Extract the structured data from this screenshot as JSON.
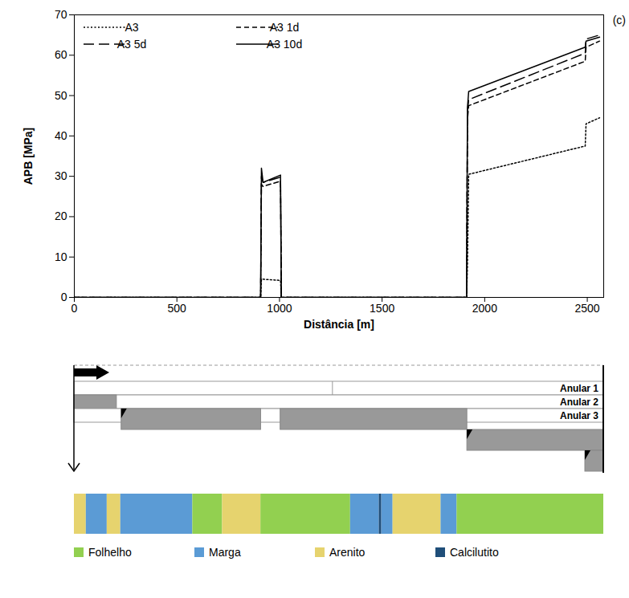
{
  "chart_data": {
    "type": "line",
    "annotation": "(c)",
    "xlabel": "Distância [m]",
    "ylabel": "APB [MPa]",
    "x": [
      0,
      908,
      912,
      920,
      1005,
      1009,
      1912,
      1916,
      1922,
      2490,
      2494,
      2560
    ],
    "xlim": [
      0,
      2580
    ],
    "xticks": [
      0,
      500,
      1000,
      1500,
      2000,
      2500
    ],
    "ylim": [
      0,
      70
    ],
    "yticks": [
      0,
      10,
      20,
      30,
      40,
      50,
      60,
      70
    ],
    "grid": false,
    "legend": "top-left",
    "series": [
      {
        "name": "A3",
        "color": "#000000",
        "line_style": "dotted",
        "values": [
          0,
          0,
          4.5,
          4.5,
          4.2,
          0,
          0,
          8,
          30.5,
          37.5,
          43,
          44.5
        ]
      },
      {
        "name": "A3 1d",
        "color": "#000000",
        "line_style": "dashed",
        "values": [
          0,
          0,
          28,
          27.5,
          28.8,
          0,
          0,
          44,
          47.5,
          58.5,
          62,
          63.5
        ]
      },
      {
        "name": "A3 5d",
        "color": "#000000",
        "line_style": "longdash",
        "values": [
          0,
          0,
          30,
          28.5,
          29.8,
          0,
          0,
          46,
          49,
          60.5,
          64,
          65
        ]
      },
      {
        "name": "A3 10d",
        "color": "#000000",
        "line_style": "solid",
        "values": [
          0,
          0,
          32,
          28.5,
          30.3,
          0,
          0,
          47,
          51,
          62,
          63.5,
          64.5
        ]
      }
    ]
  },
  "well_schematic": {
    "annuli": [
      {
        "label": "Anular 1",
        "divisions": [
          1260
        ],
        "cement": []
      },
      {
        "label": "Anular 2",
        "divisions": [],
        "cement": [
          [
            0,
            207
          ]
        ]
      },
      {
        "label": "Anular 3",
        "divisions": [],
        "cement": [
          [
            230,
            910
          ],
          [
            1005,
            1915
          ]
        ]
      }
    ],
    "casings": [
      {
        "cement": [
          [
            1915,
            2580
          ]
        ]
      },
      {
        "cement": [
          [
            2490,
            2580
          ]
        ]
      }
    ]
  },
  "lithology": {
    "legend": [
      {
        "name": "Folhelho",
        "color": "#92d050"
      },
      {
        "name": "Marga",
        "color": "#5b9bd5"
      },
      {
        "name": "Arenito",
        "color": "#e6d36e"
      },
      {
        "name": "Calcilutito",
        "color": "#1f4e79"
      }
    ],
    "layers": [
      {
        "rock": "Arenito",
        "from": 0,
        "to": 58
      },
      {
        "rock": "Marga",
        "from": 58,
        "to": 160
      },
      {
        "rock": "Arenito",
        "from": 160,
        "to": 226
      },
      {
        "rock": "Marga",
        "from": 226,
        "to": 577
      },
      {
        "rock": "Folhelho",
        "from": 577,
        "to": 722
      },
      {
        "rock": "Arenito",
        "from": 722,
        "to": 909
      },
      {
        "rock": "Folhelho",
        "from": 909,
        "to": 1346
      },
      {
        "rock": "Marga",
        "from": 1346,
        "to": 1486
      },
      {
        "rock": "Calcilutito",
        "from": 1486,
        "to": 1498
      },
      {
        "rock": "Marga",
        "from": 1498,
        "to": 1553
      },
      {
        "rock": "Arenito",
        "from": 1553,
        "to": 1787
      },
      {
        "rock": "Marga",
        "from": 1787,
        "to": 1865
      },
      {
        "rock": "Folhelho",
        "from": 1865,
        "to": 2580
      }
    ]
  }
}
